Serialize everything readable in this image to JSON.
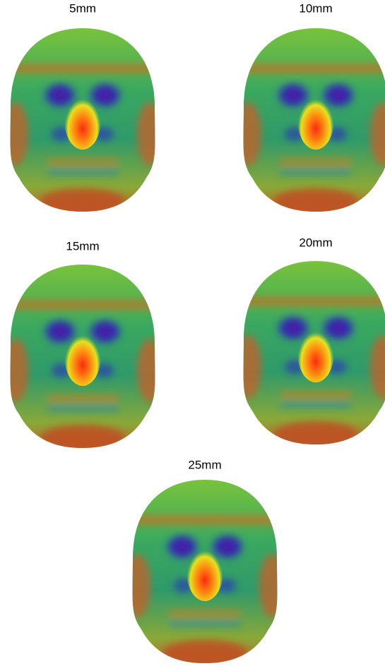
{
  "panels": [
    {
      "label": "5mm"
    },
    {
      "label": "10mm"
    },
    {
      "label": "15mm"
    },
    {
      "label": "20mm"
    },
    {
      "label": "25mm"
    }
  ]
}
